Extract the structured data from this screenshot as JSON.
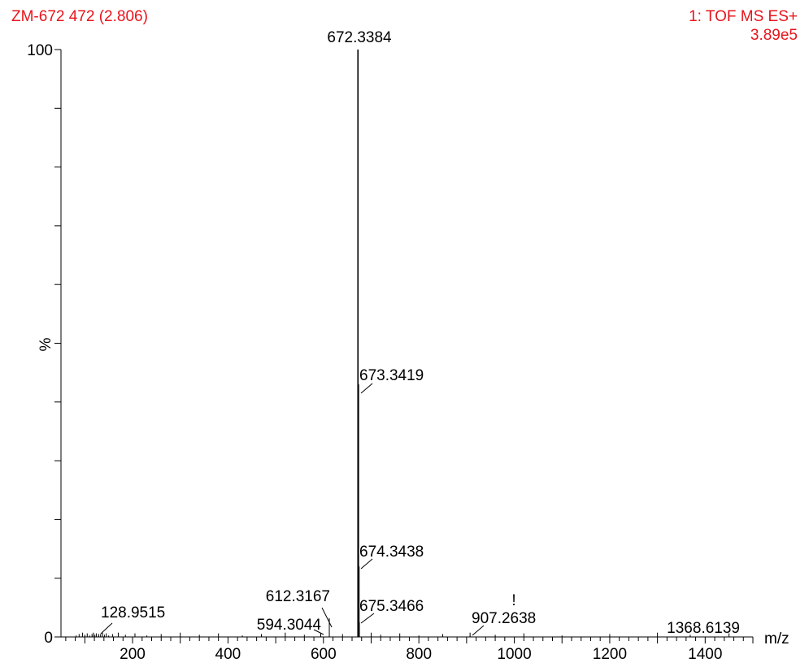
{
  "header": {
    "sample_label": "ZM-672 472 (2.806)",
    "function_label": "1: TOF MS ES+",
    "max_intensity": "3.89e5"
  },
  "colors": {
    "header": "#e8141b",
    "axis": "#000000",
    "peaks": "#000000"
  },
  "chart_data": {
    "type": "bar",
    "title": "",
    "xlabel": "m/z",
    "ylabel": "%",
    "xlim": [
      50,
      1500
    ],
    "ylim": [
      0,
      100
    ],
    "x_ticks": [
      200,
      400,
      600,
      800,
      1000,
      1200,
      1400
    ],
    "y_ticks": [
      0,
      100
    ],
    "grid": false,
    "peaks": [
      {
        "mz": 672.3384,
        "intensity": 100,
        "label": "672.3384"
      },
      {
        "mz": 673.3419,
        "intensity": 43,
        "label": "673.3419"
      },
      {
        "mz": 674.3438,
        "intensity": 12,
        "label": "674.3438"
      },
      {
        "mz": 675.3466,
        "intensity": 2.5,
        "label": "675.3466"
      },
      {
        "mz": 612.3167,
        "intensity": 3.2,
        "label": "612.3167"
      },
      {
        "mz": 594.3044,
        "intensity": 0.6,
        "label": "594.3044"
      },
      {
        "mz": 128.9515,
        "intensity": 0.5,
        "label": "128.9515"
      },
      {
        "mz": 907.2638,
        "intensity": 0.2,
        "label": "907.2638"
      },
      {
        "mz": 1368.6139,
        "intensity": 0.15,
        "label": "1368.6139"
      }
    ],
    "annotations": [
      {
        "text": "!",
        "near_mz": 907.2638
      }
    ]
  }
}
